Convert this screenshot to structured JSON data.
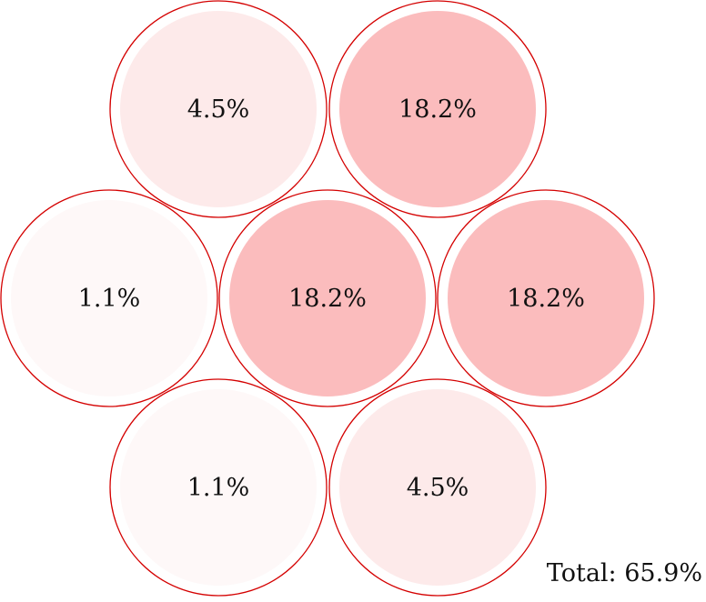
{
  "diagram": {
    "outline_color": "#d40000",
    "cells": [
      {
        "id": "top-left",
        "label": "4.5%",
        "value": 4.5,
        "fill": "#fdeaea"
      },
      {
        "id": "top-right",
        "label": "18.2%",
        "value": 18.2,
        "fill": "#fbbcbd"
      },
      {
        "id": "middle-left",
        "label": "1.1%",
        "value": 1.1,
        "fill": "#fef8f8"
      },
      {
        "id": "center",
        "label": "18.2%",
        "value": 18.2,
        "fill": "#fbbcbd"
      },
      {
        "id": "middle-right",
        "label": "18.2%",
        "value": 18.2,
        "fill": "#fbbcbd"
      },
      {
        "id": "bottom-left",
        "label": "1.1%",
        "value": 1.1,
        "fill": "#fef8f8"
      },
      {
        "id": "bottom-right",
        "label": "4.5%",
        "value": 4.5,
        "fill": "#fdeaea"
      }
    ],
    "total_label": "Total: 65.9%"
  }
}
